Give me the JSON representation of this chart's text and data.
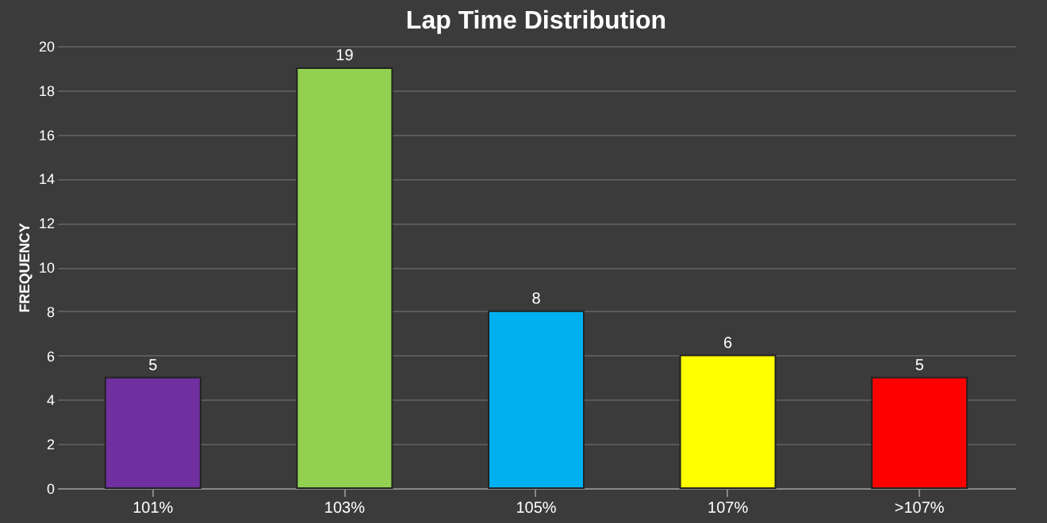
{
  "chart_data": {
    "type": "bar",
    "title": "Lap Time Distribution",
    "ylabel": "FREQUENCY",
    "categories": [
      "101%",
      "103%",
      "105%",
      "107%",
      ">107%"
    ],
    "values": [
      5,
      19,
      8,
      6,
      5
    ],
    "colors": [
      "#7030a0",
      "#92d050",
      "#00b0f0",
      "#ffff00",
      "#ff0000"
    ],
    "ylim": [
      0,
      20
    ],
    "yticks": [
      0,
      2,
      4,
      6,
      8,
      10,
      12,
      14,
      16,
      18,
      20
    ],
    "grid": "y",
    "data_labels": true
  }
}
